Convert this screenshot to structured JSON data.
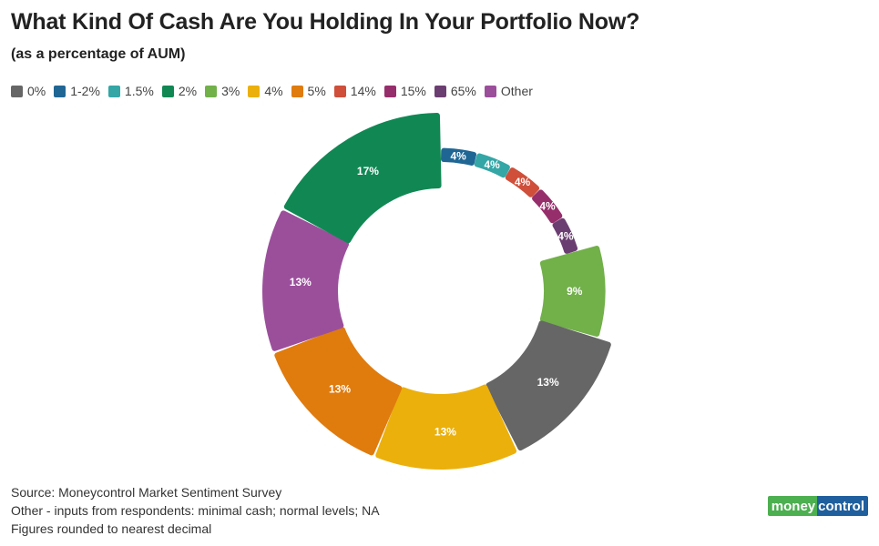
{
  "chart_data": {
    "type": "pie",
    "title": "What Kind Of Cash Are You Holding In Your Portfolio Now?",
    "subtitle": "(as a percentage of AUM)",
    "legend_position": "top-left",
    "legend": [
      {
        "label": "0%",
        "color": "#666666"
      },
      {
        "label": "1-2%",
        "color": "#1f6694"
      },
      {
        "label": "1.5%",
        "color": "#34a6a6"
      },
      {
        "label": "2%",
        "color": "#118854"
      },
      {
        "label": "3%",
        "color": "#72b04a"
      },
      {
        "label": "4%",
        "color": "#ebb00b"
      },
      {
        "label": "5%",
        "color": "#e07b0e"
      },
      {
        "label": "14%",
        "color": "#cf4f3a"
      },
      {
        "label": "15%",
        "color": "#972e6c"
      },
      {
        "label": "65%",
        "color": "#6b3e71"
      },
      {
        "label": "Other",
        "color": "#9b4f9b"
      }
    ],
    "slices": [
      {
        "category": "1-2%",
        "value": 4,
        "label": "4%",
        "color": "#1f6694"
      },
      {
        "category": "1.5%",
        "value": 4,
        "label": "4%",
        "color": "#34a6a6"
      },
      {
        "category": "14%",
        "value": 4,
        "label": "4%",
        "color": "#cf4f3a"
      },
      {
        "category": "15%",
        "value": 4,
        "label": "4%",
        "color": "#972e6c"
      },
      {
        "category": "65%",
        "value": 4,
        "label": "4%",
        "color": "#6b3e71"
      },
      {
        "category": "3%",
        "value": 9,
        "label": "9%",
        "color": "#72b04a"
      },
      {
        "category": "0%",
        "value": 13,
        "label": "13%",
        "color": "#666666"
      },
      {
        "category": "4%",
        "value": 13,
        "label": "13%",
        "color": "#ebb00b"
      },
      {
        "category": "5%",
        "value": 13,
        "label": "13%",
        "color": "#e07b0e"
      },
      {
        "category": "Other",
        "value": 13,
        "label": "13%",
        "color": "#9b4f9b"
      },
      {
        "category": "2%",
        "value": 17,
        "label": "17%",
        "color": "#118854"
      }
    ]
  },
  "notes": {
    "source": "Source: Moneycontrol Market Sentiment Survey",
    "other": "Other - inputs from respondents: minimal cash; normal levels; NA",
    "rounding": "Figures rounded to nearest decimal"
  },
  "brand": {
    "part1": "money",
    "part2": "control"
  }
}
